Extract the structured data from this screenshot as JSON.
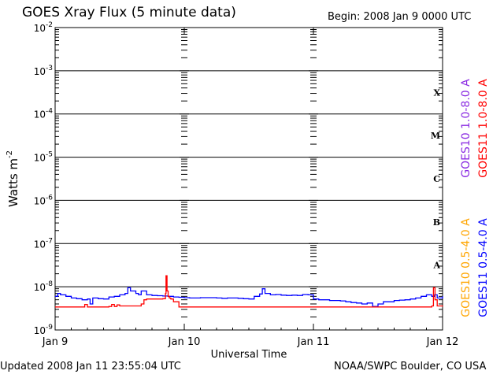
{
  "header": {
    "title": "GOES Xray Flux (5 minute data)",
    "begin": "Begin:  2008 Jan 9 0000 UTC"
  },
  "footer": {
    "updated": "Updated 2008 Jan 11 23:55:04 UTC",
    "credit": "NOAA/SWPC Boulder, CO USA"
  },
  "chart_data": {
    "type": "line",
    "title": "GOES Xray Flux (5 minute data)",
    "xlabel": "Universal Time",
    "ylabel": "Watts m",
    "ylabel_sup": "-2",
    "yscale": "log",
    "ylim": [
      1e-09,
      0.01
    ],
    "xlim": [
      0,
      72
    ],
    "x_unit": "hours since Jan 9 0000 UTC",
    "x_ticks": [
      {
        "x": 0,
        "label": "Jan 9"
      },
      {
        "x": 24,
        "label": "Jan 10"
      },
      {
        "x": 48,
        "label": "Jan 11"
      },
      {
        "x": 72,
        "label": "Jan 12"
      }
    ],
    "y_ticks": [
      {
        "base": "10",
        "exp": "-9",
        "value": 1e-09
      },
      {
        "base": "10",
        "exp": "-8",
        "value": 1e-08
      },
      {
        "base": "10",
        "exp": "-7",
        "value": 1e-07
      },
      {
        "base": "10",
        "exp": "-6",
        "value": 1e-06
      },
      {
        "base": "10",
        "exp": "-5",
        "value": 1e-05
      },
      {
        "base": "10",
        "exp": "-4",
        "value": 0.0001
      },
      {
        "base": "10",
        "exp": "-3",
        "value": 0.001
      },
      {
        "base": "10",
        "exp": "-2",
        "value": 0.01
      }
    ],
    "flare_classes": [
      {
        "label": "A",
        "low": 1e-08,
        "high": 1e-07
      },
      {
        "label": "B",
        "low": 1e-07,
        "high": 1e-06
      },
      {
        "label": "C",
        "low": 1e-06,
        "high": 1e-05
      },
      {
        "label": "M",
        "low": 1e-05,
        "high": 0.0001
      },
      {
        "label": "X",
        "low": 0.0001,
        "high": 0.001
      }
    ],
    "grid": true,
    "legend": [
      {
        "label": "GOES10 1.0-8.0 A",
        "color": "#8a2be2"
      },
      {
        "label": "GOES11 1.0-8.0 A",
        "color": "#ff0000"
      },
      {
        "label": "GOES10 0.5-4.0 A",
        "color": "#ffa500"
      },
      {
        "label": "GOES11 0.5-4.0 A",
        "color": "#0000ff"
      }
    ],
    "series": [
      {
        "name": "GOES11 0.5-4.0 A",
        "color": "#0000ff",
        "x": [
          0,
          0.5,
          1,
          2,
          3,
          4,
          5,
          6,
          6.5,
          7,
          8,
          9,
          10,
          11,
          12,
          13,
          13.5,
          14,
          15,
          15.5,
          16,
          17,
          18,
          19,
          20,
          21,
          22,
          23,
          24,
          25,
          26,
          27,
          28,
          29,
          30,
          31,
          32,
          33,
          34,
          35,
          36,
          37,
          38,
          38.5,
          39,
          40,
          41,
          42,
          43,
          44,
          45,
          46,
          47,
          48,
          49,
          50,
          51,
          52,
          53,
          54,
          55,
          56,
          57,
          58,
          59,
          60,
          61,
          62,
          63,
          64,
          65,
          66,
          67,
          68,
          69,
          70,
          70.5,
          71,
          72
        ],
        "values": [
          6e-09,
          7e-09,
          6.5e-09,
          6e-09,
          5.5e-09,
          5.3e-09,
          5e-09,
          5.2e-09,
          4e-09,
          5.5e-09,
          5.3e-09,
          5.2e-09,
          5.8e-09,
          6e-09,
          6.5e-09,
          7e-09,
          9.5e-09,
          8e-09,
          7e-09,
          6.5e-09,
          8e-09,
          6.5e-09,
          6.3e-09,
          6.2e-09,
          6.1e-09,
          6e-09,
          5.8e-09,
          5.7e-09,
          5.6e-09,
          5.5e-09,
          5.5e-09,
          5.6e-09,
          5.6e-09,
          5.6e-09,
          5.5e-09,
          5.4e-09,
          5.5e-09,
          5.5e-09,
          5.4e-09,
          5.3e-09,
          5.2e-09,
          6e-09,
          6.8e-09,
          9e-09,
          7e-09,
          6.5e-09,
          6.6e-09,
          6.4e-09,
          6.3e-09,
          6.4e-09,
          6.3e-09,
          6.6e-09,
          6.5e-09,
          5.2e-09,
          5e-09,
          5e-09,
          4.8e-09,
          4.8e-09,
          4.7e-09,
          4.5e-09,
          4.3e-09,
          4.2e-09,
          4e-09,
          4.2e-09,
          3.5e-09,
          4e-09,
          4.5e-09,
          4.5e-09,
          4.8e-09,
          4.9e-09,
          5e-09,
          5.2e-09,
          5.5e-09,
          6e-09,
          6.5e-09,
          6e-09,
          6.5e-09,
          5.5e-09,
          6e-09
        ]
      },
      {
        "name": "GOES11 1.0-8.0 A",
        "color": "#ff0000",
        "x": [
          0,
          5,
          5.5,
          6,
          9,
          10,
          10.5,
          11,
          11.5,
          12,
          13,
          14,
          15,
          16,
          16.5,
          17,
          18,
          19,
          20,
          20.5,
          20.6,
          20.8,
          21,
          21.2,
          21.5,
          22,
          23,
          24,
          30,
          36,
          42,
          48,
          54,
          60,
          66,
          68,
          69,
          70,
          70.3,
          70.6,
          71,
          72
        ],
        "values": [
          3.4e-09,
          3.4e-09,
          3.9e-09,
          3.4e-09,
          3.4e-09,
          3.5e-09,
          3.9e-09,
          3.5e-09,
          3.8e-09,
          3.6e-09,
          3.6e-09,
          3.6e-09,
          3.6e-09,
          4e-09,
          5e-09,
          5.2e-09,
          5.2e-09,
          5.2e-09,
          5.3e-09,
          7e-09,
          1.8e-08,
          8e-09,
          6e-09,
          5.5e-09,
          5.2e-09,
          4.5e-09,
          3.4e-09,
          3.4e-09,
          3.4e-09,
          3.4e-09,
          3.4e-09,
          3.4e-09,
          3.4e-09,
          3.4e-09,
          3.4e-09,
          3.4e-09,
          3.4e-09,
          3.6e-09,
          9.5e-09,
          5e-09,
          3.6e-09,
          3.5e-09
        ]
      }
    ]
  }
}
